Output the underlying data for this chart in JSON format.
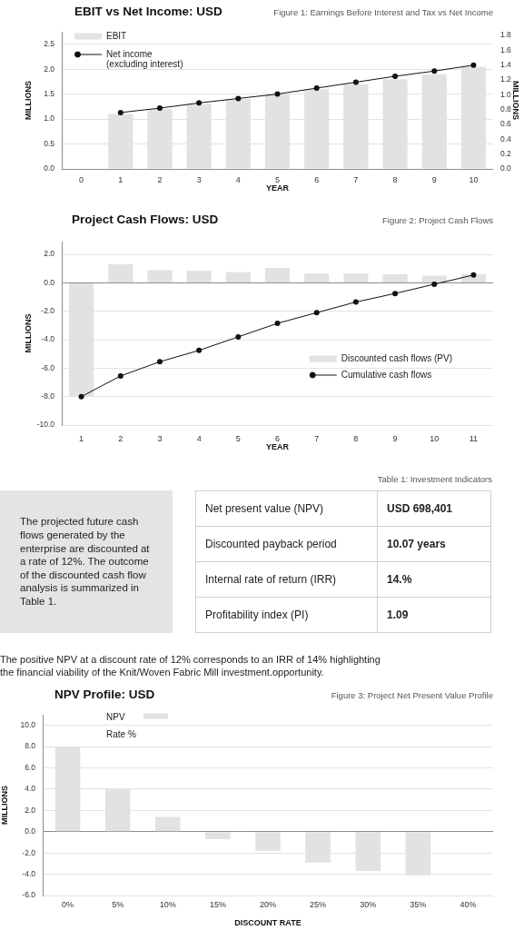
{
  "chart_data": [
    {
      "type": "bar",
      "title": "EBIT vs Net Income: USD",
      "subtitle": "Figure 1: Earnings Before Interest and Tax vs Net Income",
      "xlabel": "YEAR",
      "ylabel": "MILLIONS",
      "y2label": "MILLIONS",
      "categories": [
        "0",
        "1",
        "2",
        "3",
        "4",
        "5",
        "6",
        "7",
        "8",
        "9",
        "10"
      ],
      "series": [
        {
          "name": "EBIT",
          "color": "#e2e2e2",
          "values": [
            null,
            1.1,
            1.2,
            1.3,
            1.4,
            1.5,
            1.6,
            1.7,
            1.8,
            1.9,
            2.05
          ]
        },
        {
          "name": "Net income (excluding interest)",
          "type": "line",
          "axis": "y2",
          "color": "#111111",
          "values": [
            null,
            0.76,
            0.82,
            0.89,
            0.95,
            1.01,
            1.09,
            1.17,
            1.25,
            1.32,
            1.4
          ]
        }
      ],
      "ylim": [
        0,
        2.75
      ],
      "yticks": [
        {
          "value": 0,
          "label": "0.0"
        },
        0.5,
        {
          "value": 1,
          "label": "1.0"
        },
        1.5,
        {
          "value": 2,
          "label": "2.0"
        },
        2.5
      ],
      "y2lim": [
        0,
        1.85
      ],
      "y2ticks": [
        {
          "value": 0,
          "label": "0.0"
        },
        0.2,
        0.4,
        0.6,
        0.8,
        {
          "value": 1,
          "label": "1.0"
        },
        1.2,
        1.4,
        1.6,
        1.8
      ],
      "grid": "y",
      "legend": "top left",
      "marker": "circle"
    },
    {
      "type": "bar",
      "title": "Project Cash Flows: USD",
      "subtitle": "Figure 2: Project Cash Flows",
      "xlabel": "YEAR",
      "ylabel": "MILLIONS",
      "categories": [
        "1",
        "2",
        "3",
        "4",
        "5",
        "6",
        "7",
        "8",
        "9",
        "10",
        "11"
      ],
      "series": [
        {
          "name": "Discounted cash flows (PV)",
          "color": "#e2e2e2",
          "values": [
            -8.0,
            1.3,
            0.9,
            0.85,
            0.75,
            1.05,
            0.65,
            0.65,
            0.6,
            0.5,
            0.6
          ]
        },
        {
          "name": "Cumulative cash flows",
          "type": "line",
          "color": "#111111",
          "values": [
            -8.0,
            -6.55,
            -5.55,
            -4.75,
            -3.8,
            -2.85,
            -2.1,
            -1.35,
            -0.75,
            -0.1,
            0.55
          ]
        }
      ],
      "ylim": [
        -10,
        2.9
      ],
      "yticks": [
        {
          "value": -10,
          "label": "-10.0"
        },
        {
          "value": -8,
          "label": "-8.0"
        },
        {
          "value": -6,
          "label": "-6.0"
        },
        {
          "value": -4,
          "label": "-4.0"
        },
        {
          "value": -2,
          "label": "-2.0"
        },
        {
          "value": 0,
          "label": "0.0"
        },
        {
          "value": 2,
          "label": "2.0"
        }
      ],
      "grid": "y",
      "legend": "right",
      "marker": "circle"
    },
    {
      "type": "other",
      "subtitle": "Table 1: Investment Indicators",
      "annotations": [
        "The projected future cash flows generated by the enterprise are discounted at a rate of 12%. The outcome of the discounted cash flow analysis is summarized in Table 1.",
        "Net present value (NPV)",
        "USD 698,401",
        "Discounted payback period",
        "10.07 years",
        "Internal rate of return (IRR)",
        "14.%",
        "Profitability index (PI)",
        "1.09",
        "The positive NPV at a discount rate of 12% corresponds to an IRR of 14% highlighting the financial viability of the Knit/Woven Fabric Mill investment.opportunity."
      ]
    },
    {
      "type": "bar",
      "title": "NPV Profile: USD",
      "subtitle": "Figure 3: Project Net Present Value Profile",
      "xlabel": "DISCOUNT RATE",
      "ylabel": "MILLIONS",
      "categories": [
        "0%",
        "5%",
        "10%",
        "15%",
        "20%",
        "25%",
        "30%",
        "35%",
        "40%"
      ],
      "series": [
        {
          "name": "NPV",
          "color": "#e2e2e2",
          "values": [
            8.0,
            4.0,
            1.4,
            -0.7,
            -1.8,
            -2.9,
            -3.7,
            -4.1,
            null
          ]
        }
      ],
      "ylim": [
        -6,
        11
      ],
      "yticks": [
        {
          "value": -6,
          "label": "-6.0"
        },
        {
          "value": -4,
          "label": "-4.0"
        },
        {
          "value": -2,
          "label": "-2.0"
        },
        {
          "value": 0,
          "label": "0.0"
        },
        {
          "value": 2,
          "label": "2.0"
        },
        {
          "value": 4,
          "label": "4.0"
        },
        {
          "value": 6,
          "label": "6.0"
        },
        {
          "value": 8,
          "label": "8.0"
        },
        {
          "value": 10,
          "label": "10.0"
        }
      ],
      "grid": "y",
      "legend": "top left",
      "annotations": [
        "Rate %"
      ]
    }
  ]
}
